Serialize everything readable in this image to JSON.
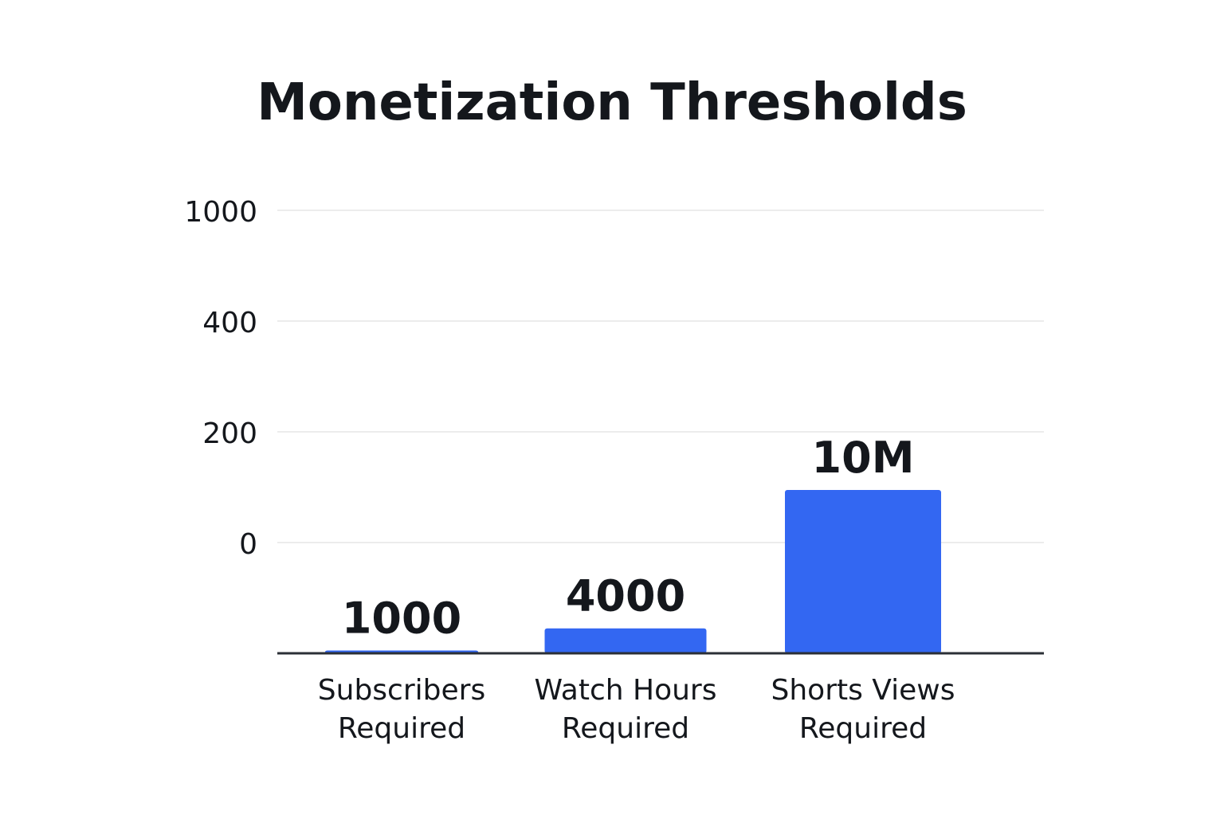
{
  "chart_data": {
    "type": "bar",
    "title": "Monetization Thresholds",
    "xlabel": "",
    "ylabel": "",
    "categories": [
      [
        "Subscribers",
        "Required"
      ],
      [
        "Watch Hours",
        "Required"
      ],
      [
        "Shorts Views",
        "Required"
      ]
    ],
    "values": [
      1000,
      4000,
      10000000
    ],
    "value_labels": [
      "1000",
      "4000",
      "10M"
    ],
    "bar_heights_on_axis": [
      -195,
      -155,
      95
    ],
    "y_ticks": [
      0,
      200,
      400,
      1000
    ],
    "y_tick_labels": [
      "0",
      "200",
      "400",
      "1000"
    ],
    "y_axis_note": "tick labels are non-linear; bar heights read against printed gridlines",
    "grid": true,
    "legend": "none",
    "colors": {
      "bar": "#3367f2",
      "text": "#14171c",
      "grid": "#e6e6e6",
      "baseline": "#2b2f36"
    }
  }
}
